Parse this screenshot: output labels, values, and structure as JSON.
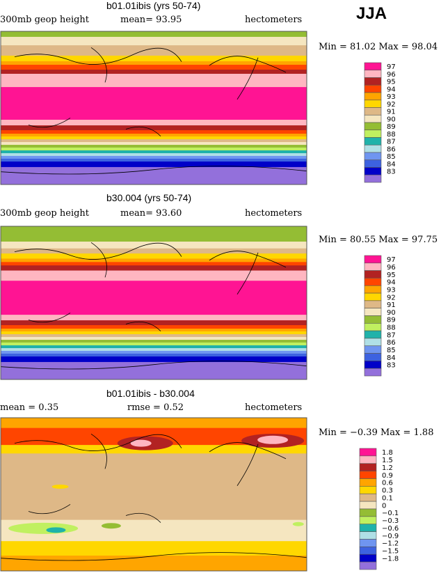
{
  "season": "JJA",
  "colors": {
    "dpink": "#ff1493",
    "lpink": "#ffb6c1",
    "firebrick": "#b22222",
    "orangered": "#ff4500",
    "orange": "#ffa500",
    "gold": "#ffd700",
    "tan": "#deb887",
    "wheat": "#f5e6c0",
    "olive": "#94bd34",
    "lgreen": "#c0f060",
    "teal": "#20b2aa",
    "lblue": "#b0e0e6",
    "cblue": "#6f95f0",
    "royal": "#3d62e0",
    "dblue": "#0000c8",
    "purple": "#9370db"
  },
  "chart_data": [
    {
      "type": "heatmap",
      "title": "b01.01ibis (yrs 50-74)",
      "field": "300mb geop height",
      "stat_text": "mean=   93.95",
      "units": "hectometers",
      "minmax": "Min =   81.02 Max =   98.04",
      "legend": [
        "97",
        "96",
        "95",
        "94",
        "93",
        "92",
        "91",
        "90",
        "89",
        "88",
        "87",
        "86",
        "85",
        "84",
        "83"
      ],
      "legend_colors": [
        "dpink",
        "lpink",
        "firebrick",
        "orangered",
        "orange",
        "gold",
        "tan",
        "wheat",
        "olive",
        "lgreen",
        "teal",
        "lblue",
        "cblue",
        "royal",
        "dblue",
        "purple"
      ],
      "bands": [
        [
          "olive",
          90
        ],
        [
          "wheat",
          83.5
        ],
        [
          "tan",
          73.6
        ],
        [
          "gold",
          61.4
        ],
        [
          "orange",
          54.8
        ],
        [
          "orangered",
          50.7
        ],
        [
          "firebrick",
          45
        ],
        [
          "lpink",
          40.1
        ],
        [
          "dpink",
          24.5
        ],
        [
          "lpink",
          -13.9
        ],
        [
          "firebrick",
          -20.5
        ],
        [
          "orangered",
          -26.2
        ],
        [
          "orange",
          -30.3
        ],
        [
          "gold",
          -33.5
        ],
        [
          "tan",
          -36.8
        ],
        [
          "wheat",
          -40.1
        ],
        [
          "olive",
          -43.4
        ],
        [
          "lgreen",
          -46.6
        ],
        [
          "teal",
          -49.9
        ],
        [
          "lblue",
          -53.2
        ],
        [
          "cblue",
          -56.4
        ],
        [
          "royal",
          -59.7
        ],
        [
          "dblue",
          -63
        ],
        [
          "purple",
          -69.5
        ]
      ]
    },
    {
      "type": "heatmap",
      "title": "b30.004 (yrs 50-74)",
      "field": "300mb geop height",
      "stat_text": "mean=   93.60",
      "units": "hectometers",
      "minmax": "Min =   80.55 Max =   97.75",
      "legend": [
        "97",
        "96",
        "95",
        "94",
        "93",
        "92",
        "91",
        "90",
        "89",
        "88",
        "87",
        "86",
        "85",
        "84",
        "83"
      ],
      "legend_colors": [
        "dpink",
        "lpink",
        "firebrick",
        "orangered",
        "orange",
        "gold",
        "tan",
        "wheat",
        "olive",
        "lgreen",
        "teal",
        "lblue",
        "cblue",
        "royal",
        "dblue",
        "purple"
      ],
      "bands": [
        [
          "olive",
          90
        ],
        [
          "wheat",
          72
        ],
        [
          "tan",
          64
        ],
        [
          "gold",
          58
        ],
        [
          "orange",
          52
        ],
        [
          "orangered",
          48
        ],
        [
          "firebrick",
          44
        ],
        [
          "lpink",
          38
        ],
        [
          "dpink",
          26
        ],
        [
          "lpink",
          -14
        ],
        [
          "firebrick",
          -20.5
        ],
        [
          "orangered",
          -26.2
        ],
        [
          "orange",
          -30.3
        ],
        [
          "gold",
          -33.5
        ],
        [
          "tan",
          -36.8
        ],
        [
          "wheat",
          -40.1
        ],
        [
          "olive",
          -43.4
        ],
        [
          "lgreen",
          -46.6
        ],
        [
          "teal",
          -49.9
        ],
        [
          "lblue",
          -53.2
        ],
        [
          "cblue",
          -56.4
        ],
        [
          "royal",
          -59.7
        ],
        [
          "dblue",
          -63
        ],
        [
          "purple",
          -69.5
        ]
      ]
    },
    {
      "type": "heatmap",
      "title": "b01.01ibis - b30.004",
      "field": "mean =     0.35",
      "stat_text": "rmse =     0.52",
      "units": "hectometers",
      "minmax": "Min =  −0.39 Max =     1.88",
      "legend": [
        "1.8",
        "1.5",
        "1.2",
        "0.9",
        "0.6",
        "0.3",
        "0.1",
        "0",
        "−0.1",
        "−0.3",
        "−0.6",
        "−0.9",
        "−1.2",
        "−1.5",
        "−1.8"
      ],
      "legend_colors": [
        "dpink",
        "lpink",
        "firebrick",
        "orangered",
        "orange",
        "gold",
        "tan",
        "wheat",
        "olive",
        "lgreen",
        "teal",
        "lblue",
        "cblue",
        "royal",
        "dblue",
        "purple"
      ],
      "bands": [
        [
          "orange",
          90
        ],
        [
          "orangered",
          78
        ],
        [
          "gold",
          58
        ],
        [
          "tan",
          48
        ],
        [
          "wheat",
          -30
        ],
        [
          "gold",
          -55
        ],
        [
          "orange",
          -72
        ]
      ],
      "blobs": [
        [
          "firebrick",
          -10,
          60,
          40,
          10
        ],
        [
          "lpink",
          -15,
          60,
          15,
          5
        ],
        [
          "firebrick",
          140,
          63,
          45,
          10
        ],
        [
          "lpink",
          140,
          64,
          22,
          6
        ],
        [
          "gold",
          -110,
          9,
          12,
          3
        ],
        [
          "lgreen",
          -130,
          -40,
          50,
          8
        ],
        [
          "teal",
          -115,
          -42,
          14,
          4
        ],
        [
          "lgreen",
          170,
          -35,
          8,
          3
        ],
        [
          "olive",
          -50,
          -37,
          14,
          4
        ]
      ]
    }
  ]
}
